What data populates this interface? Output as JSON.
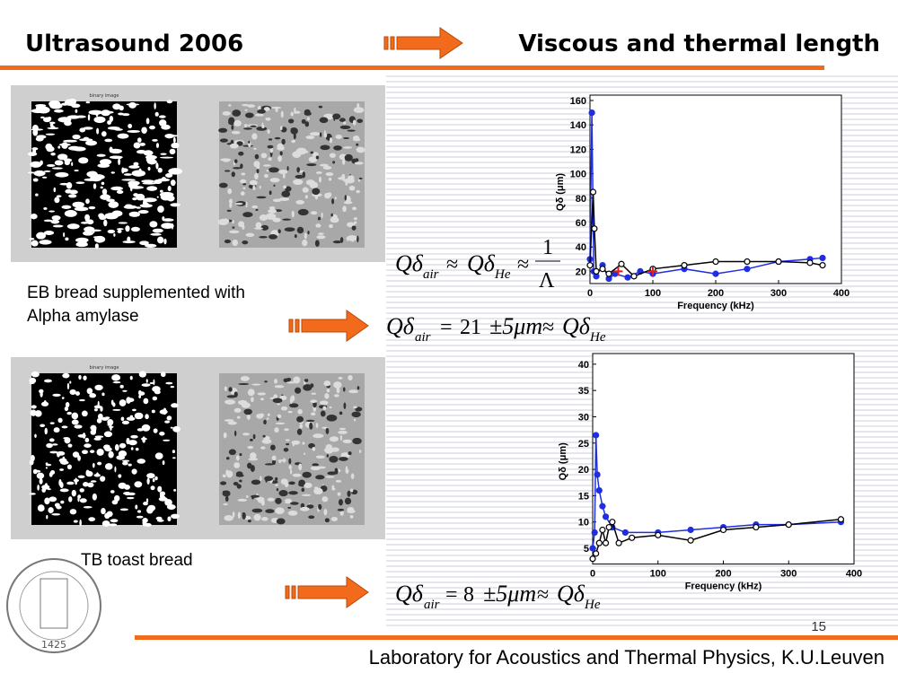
{
  "header": {
    "left": "Ultrasound 2006",
    "right": "Viscous and thermal length"
  },
  "footer": {
    "page": "15",
    "lab": "Laboratory for Acoustics and Thermal Physics, K.U.Leuven"
  },
  "logo": {
    "year": "1425"
  },
  "panels": [
    {
      "image_label": "binary image",
      "caption": [
        "EB bread supplemented with",
        "Alpha amylase"
      ]
    },
    {
      "image_label": "binary image",
      "caption": [
        "TB toast bread"
      ]
    }
  ],
  "formulas": [
    {
      "lhs": "Qδ",
      "lhs_sub": "air",
      "rel": "≈",
      "rhs": "Qδ",
      "rhs_sub": "He",
      "rel2": "≈",
      "num": "1",
      "den": "Λ"
    },
    {
      "lhs": "Qδ",
      "lhs_sub": "air",
      "eq": "=",
      "value": 21,
      "pm": "±5μm",
      "rel": "≈",
      "rhs": "Qδ",
      "rhs_sub": "He"
    },
    {
      "lhs": "Qδ",
      "lhs_sub": "air",
      "eq": "=",
      "value": 8,
      "pm": "±5μm",
      "rel": "≈",
      "rhs": "Qδ",
      "rhs_sub": "He"
    }
  ],
  "chart_data": [
    {
      "type": "line",
      "xlabel": "Frequency (kHz)",
      "ylabel": "Qδ (μm)",
      "xlim": [
        0,
        400
      ],
      "ylim": [
        10,
        160
      ],
      "xticks": [
        0,
        100,
        200,
        300,
        400
      ],
      "yticks": [
        20,
        40,
        60,
        80,
        100,
        120,
        140,
        160
      ],
      "series": [
        {
          "color": "#1f2ee0",
          "marker": "filled",
          "x": [
            0,
            3,
            6,
            10,
            20,
            30,
            40,
            60,
            80,
            100,
            150,
            200,
            250,
            300,
            350,
            370
          ],
          "values": [
            30,
            150,
            20,
            16,
            25,
            14,
            18,
            15,
            20,
            18,
            22,
            18,
            22,
            28,
            30,
            31
          ]
        },
        {
          "color": "#000000",
          "marker": "open",
          "x": [
            0,
            5,
            7,
            10,
            20,
            30,
            50,
            70,
            100,
            150,
            200,
            250,
            300,
            350,
            370
          ],
          "values": [
            25,
            85,
            55,
            20,
            22,
            18,
            26,
            16,
            22,
            25,
            28,
            28,
            28,
            27,
            25
          ]
        },
        {
          "color": "#e02020",
          "marker": "plus",
          "x": [
            45,
            100
          ],
          "values": [
            20,
            20
          ]
        }
      ]
    },
    {
      "type": "line",
      "xlabel": "Frequency (kHz)",
      "ylabel": "Qδ (μm)",
      "xlim": [
        0,
        400
      ],
      "ylim": [
        2,
        41
      ],
      "xticks": [
        0,
        100,
        200,
        300,
        400
      ],
      "yticks": [
        5,
        10,
        15,
        20,
        25,
        30,
        35,
        40
      ],
      "series": [
        {
          "color": "#1f2ee0",
          "marker": "filled",
          "x": [
            0,
            3,
            5,
            7,
            10,
            15,
            20,
            30,
            50,
            100,
            150,
            200,
            250,
            300,
            380
          ],
          "values": [
            5,
            8,
            26.5,
            19,
            16,
            13,
            11,
            9,
            8,
            8,
            8.5,
            9,
            9.5,
            9.5,
            10
          ]
        },
        {
          "color": "#000000",
          "marker": "open",
          "x": [
            0,
            5,
            10,
            15,
            20,
            25,
            30,
            40,
            60,
            100,
            150,
            200,
            250,
            300,
            380
          ],
          "values": [
            3,
            4,
            6,
            8.5,
            6,
            9,
            10,
            6,
            7,
            7.5,
            6.5,
            8.5,
            9,
            9.5,
            10.5
          ]
        }
      ]
    }
  ]
}
